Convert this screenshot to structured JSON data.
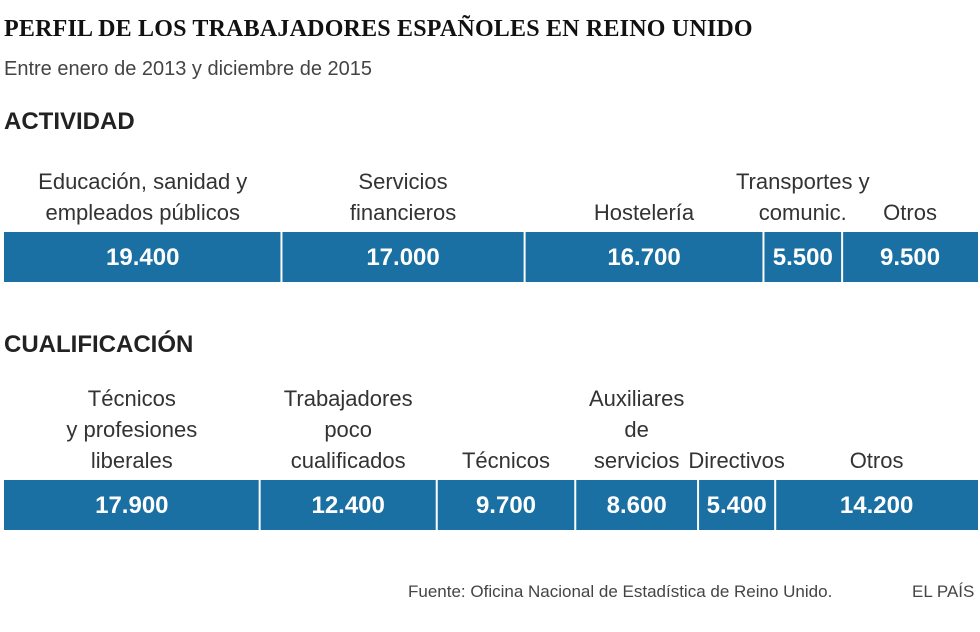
{
  "title": "PERFIL DE LOS TRABAJADORES ESPAÑOLES EN REINO UNIDO",
  "subtitle": "Entre enero de 2013 y diciembre de 2015",
  "source": "Fuente: Oficina Nacional de Estadística de Reino Unido.",
  "brand": "EL PAÍS",
  "colors": {
    "bar": "#1a6fa3",
    "text": "#333333",
    "divider": "#ffffff"
  },
  "chart_data": [
    {
      "type": "bar",
      "orientation": "horizontal-stacked",
      "title": "ACTIVIDAD",
      "unit": "trabajadores",
      "categories": [
        "Educación, sanidad y empleados públicos",
        "Servicios financieros",
        "Hostelería",
        "Transportes y comunic.",
        "Otros"
      ],
      "label_lines": [
        [
          "Educación, sanidad y",
          "empleados públicos"
        ],
        [
          "Servicios",
          "financieros"
        ],
        [
          "Hostelería"
        ],
        [
          "Transportes y",
          "comunic."
        ],
        [
          "Otros"
        ]
      ],
      "values": [
        19400,
        17000,
        16700,
        5500,
        9500
      ],
      "value_labels": [
        "19.400",
        "17.000",
        "16.700",
        "5.500",
        "9.500"
      ]
    },
    {
      "type": "bar",
      "orientation": "horizontal-stacked",
      "title": "CUALIFICACIÓN",
      "unit": "trabajadores",
      "categories": [
        "Técnicos y profesiones liberales",
        "Trabajadores poco cualificados",
        "Técnicos",
        "Auxiliares de servicios",
        "Directivos",
        "Otros"
      ],
      "label_lines": [
        [
          "Técnicos",
          "y profesiones",
          "liberales"
        ],
        [
          "Trabajadores",
          "poco",
          "cualificados"
        ],
        [
          "Técnicos"
        ],
        [
          "Auxiliares",
          "de",
          "servicios"
        ],
        [
          "Directivos"
        ],
        [
          "Otros"
        ]
      ],
      "values": [
        17900,
        12400,
        9700,
        8600,
        5400,
        14200
      ],
      "value_labels": [
        "17.900",
        "12.400",
        "9.700",
        "8.600",
        "5.400",
        "14.200"
      ]
    }
  ]
}
